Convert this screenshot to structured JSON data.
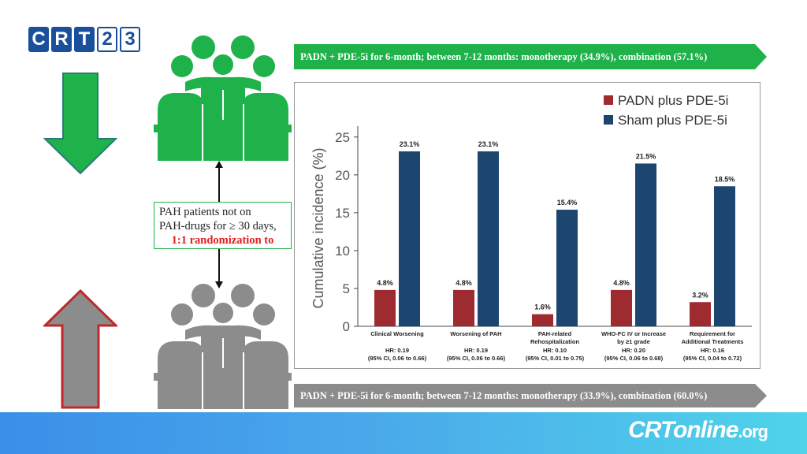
{
  "logo": {
    "letters": [
      "C",
      "R",
      "T",
      "2",
      "3"
    ]
  },
  "banner_top": {
    "text": "PADN + PDE-5i for 6-month;  between 7-12 months: monotherapy (34.9%), combination (57.1%)"
  },
  "banner_bottom": {
    "text": "PADN + PDE-5i for 6-month;  between 7-12 months: monotherapy (33.9%), combination (60.0%)"
  },
  "info_box": {
    "line1": "PAH patients not on",
    "line2": "PAH-drugs for ≥ 30 days,",
    "line3": "1:1 randomization to"
  },
  "footer": {
    "logo_main": "CRTonline",
    "logo_suffix": ".org"
  },
  "colors": {
    "green": "#1fb24a",
    "gray": "#8c8c8c",
    "padn": "#9e2b2f",
    "sham": "#1c4670",
    "arrow_red": "#c0282a"
  },
  "chart_data": {
    "type": "bar",
    "ylabel": "Cumulative incidence (%)",
    "ylim": [
      0,
      28
    ],
    "yticks": [
      0,
      5,
      10,
      15,
      20,
      25
    ],
    "legend_position": "top-right",
    "categories": [
      {
        "label": [
          "Clinical Worsening"
        ],
        "hr": "HR: 0.19",
        "ci": "(95% CI, 0.06 to 0.66)"
      },
      {
        "label": [
          "Worsening of PAH"
        ],
        "hr": "HR: 0.19",
        "ci": "(95% CI, 0.06 to 0.66)"
      },
      {
        "label": [
          "PAH-related",
          "Rehospitalization"
        ],
        "hr": "HR: 0.10",
        "ci": "(95% CI, 0.01 to 0.75)"
      },
      {
        "label": [
          "WHO-FC IV or Increase",
          "by ≥1 grade"
        ],
        "hr": "HR: 0.20",
        "ci": "(95% CI, 0.06 to 0.68)"
      },
      {
        "label": [
          "Requirement for",
          "Additional Treatments"
        ],
        "hr": "HR: 0.16",
        "ci": "(95% CI, 0.04 to 0.72)"
      }
    ],
    "series": [
      {
        "name": "PADN plus PDE-5i",
        "values": [
          4.8,
          4.8,
          1.6,
          4.8,
          3.2
        ],
        "labels": [
          "4.8%",
          "4.8%",
          "1.6%",
          "4.8%",
          "3.2%"
        ]
      },
      {
        "name": "Sham plus PDE-5i",
        "values": [
          23.1,
          23.1,
          15.4,
          21.5,
          18.5
        ],
        "labels": [
          "23.1%",
          "23.1%",
          "15.4%",
          "21.5%",
          "18.5%"
        ]
      }
    ]
  }
}
